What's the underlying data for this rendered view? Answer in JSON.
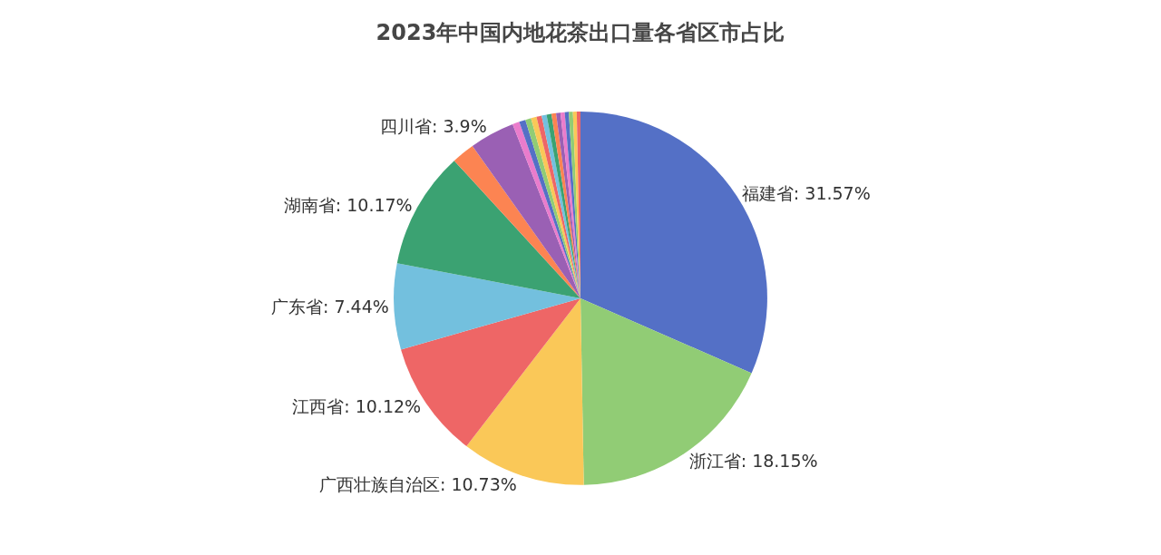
{
  "chart_data": {
    "type": "pie",
    "title": "2023年中国内地花茶出口量各省区市占比",
    "categories": [
      "福建省",
      "浙江省",
      "广西壮族自治区",
      "江西省",
      "广东省",
      "湖南省",
      null,
      "四川省",
      null,
      null,
      null,
      null,
      null,
      null,
      null,
      null,
      null,
      null,
      null,
      null,
      null,
      null
    ],
    "values": [
      31.57,
      18.15,
      10.73,
      10.12,
      7.44,
      10.17,
      2.0,
      3.9,
      0.6,
      0.55,
      0.5,
      0.48,
      0.45,
      0.43,
      0.42,
      0.4,
      0.38,
      0.36,
      0.35,
      0.35,
      0.33,
      0.32
    ],
    "value_labels": [
      "31.57%",
      "18.15%",
      "10.73%",
      "10.12%",
      "7.44%",
      "10.17%",
      null,
      "3.9%",
      null,
      null,
      null,
      null,
      null,
      null,
      null,
      null,
      null,
      null,
      null,
      null,
      null,
      null
    ],
    "colors": [
      "#5470c6",
      "#91cc75",
      "#fac858",
      "#ee6666",
      "#73c0de",
      "#3ba272",
      "#fc8452",
      "#9a60b4",
      "#ea7ccc",
      "#5470c6",
      "#91cc75",
      "#fac858",
      "#ee6666",
      "#73c0de",
      "#3ba272",
      "#fc8452",
      "#9a60b4",
      "#ea7ccc",
      "#5470c6",
      "#91cc75",
      "#fac858",
      "#ee6666"
    ],
    "legend": false
  }
}
